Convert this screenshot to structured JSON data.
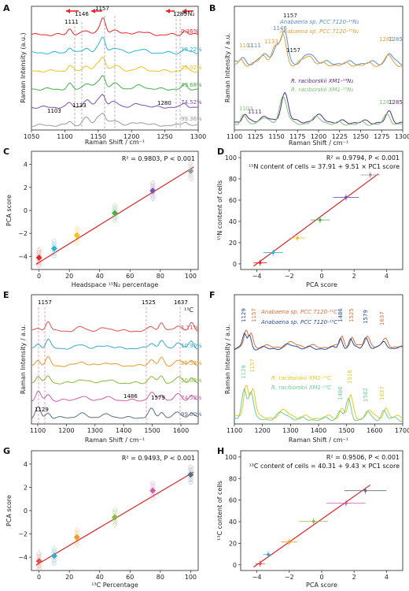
{
  "colors": {
    "red": "#e8262a",
    "cyan": "#2ab6d8",
    "yellow": "#f2c21b",
    "green": "#47b049",
    "purple": "#7a52b3",
    "gray": "#9a9a9a",
    "ana_blue": "#5b8ec9",
    "ana_orange": "#e0a33a",
    "rr_purple": "#5a2a82",
    "rr_green": "#7cc576",
    "fit": "#d8262a",
    "c_red": "#e0524f",
    "c_cyan": "#3aa9c7",
    "c_orange": "#ee9a25",
    "c_green": "#86bb3b",
    "c_pink": "#cf5bab",
    "c_slate": "#5b6f84",
    "c_ana_orange": "#e0703a",
    "c_ana_blue": "#2a4f9a",
    "c_rr_yellow": "#e8c81e",
    "c_rr_green": "#6fcf9a"
  },
  "panels": {
    "A": {
      "label": "A",
      "title": "¹⁵N₂",
      "xlabel": "Raman Shift / cm⁻¹",
      "ylabel": "Raman Intensity (a.u.)",
      "xlim": [
        1050,
        1300
      ],
      "xticks": [
        "1050",
        "1100",
        "1150",
        "1200",
        "1250",
        "1300"
      ],
      "peaks": [
        "1111",
        "1146",
        "1157",
        "1285",
        "1103",
        "1133",
        "1280"
      ],
      "series": [
        "0.36%",
        "10.22%",
        "25.02%",
        "49.68%",
        "74.52%",
        "99.36%"
      ]
    },
    "B": {
      "label": "B",
      "xlabel": "Raman Shift / cm⁻¹",
      "ylabel": "Raman Intensity / a.u.",
      "xlim": [
        1100,
        1300
      ],
      "xticks": [
        "1100",
        "1125",
        "1150",
        "1175",
        "1200",
        "1225",
        "1250",
        "1275",
        "1300"
      ],
      "legend_top": [
        "Anabaena sp. PCC 7120-¹⁴N₂",
        "Anabaena sp. PCC 7120-¹⁵N₂"
      ],
      "legend_bottom": [
        "R. raciborskii XM1-¹⁴N₂",
        "R. raciborskii XM1-¹⁵N₂"
      ],
      "peaks_top": [
        "1103",
        "1111",
        "1133",
        "1146",
        "1157",
        "1280",
        "1285"
      ],
      "peaks_bottom": [
        "1103",
        "1111",
        "1157",
        "1280",
        "1285"
      ]
    },
    "C": {
      "label": "C",
      "xlabel": "Headspace ¹⁵N₂ percentage",
      "ylabel": "PCA score",
      "stat": "R² = 0.9803, P < 0.001",
      "xticks": [
        "0",
        "20",
        "40",
        "60",
        "80",
        "100"
      ],
      "yticks": [
        "−4",
        "−2",
        "0",
        "2",
        "4"
      ]
    },
    "D": {
      "label": "D",
      "xlabel": "PCA score",
      "ylabel": "¹⁵N content of cells",
      "stat": "R² = 0.9794, P < 0.001",
      "equation": "¹⁵N content of cells = 37.91 + 9.51 × PC1 score",
      "xticks": [
        "−4",
        "−2",
        "0",
        "2",
        "4"
      ],
      "yticks": [
        "0",
        "20",
        "40",
        "60",
        "80",
        "100"
      ]
    },
    "E": {
      "label": "E",
      "title": "¹³C",
      "xlabel": "Raman Shift / cm⁻¹",
      "ylabel": "Raman Intensity / a.u.",
      "xticks": [
        "1100",
        "1200",
        "1300",
        "1400",
        "1500",
        "1600"
      ],
      "peaks": [
        "1157",
        "1525",
        "1637",
        "1129",
        "1486",
        "1579"
      ],
      "series": [
        "1.11%",
        "10.90%",
        "25.58%",
        "50.06%",
        "74.53%",
        "99.00%"
      ]
    },
    "F": {
      "label": "F",
      "xlabel": "Raman Shift / cm⁻¹",
      "ylabel": "Raman Intensity / a.u.",
      "xticks": [
        "1100",
        "1200",
        "1300",
        "1400",
        "1500",
        "1600",
        "1700"
      ],
      "legend_top": [
        "Anabaena sp. PCC 7120-¹²C",
        "Anabaena sp. PCC 7120-¹³C"
      ],
      "legend_bottom": [
        "R. raciborskii XM1-¹²C",
        "R. raciborskii XM1-¹³C"
      ],
      "peaks_top": [
        "1129",
        "1157",
        "1486",
        "1525",
        "1579",
        "1637"
      ],
      "peaks_bottom": [
        "1129",
        "1157",
        "1486",
        "1516",
        "1582",
        "1637"
      ]
    },
    "G": {
      "label": "G",
      "xlabel": "¹³C Percentage",
      "ylabel": "PCA score",
      "stat": "R² = 0.9493, P < 0.001",
      "xticks": [
        "0",
        "20",
        "40",
        "60",
        "80",
        "100"
      ],
      "yticks": [
        "−4",
        "−2",
        "0",
        "2",
        "4"
      ]
    },
    "H": {
      "label": "H",
      "xlabel": "PCA score",
      "ylabel": "¹³C content of cells",
      "stat": "R² = 0.9506, P < 0.001",
      "equation": "¹³C content of cells = 40.31 + 9.43 × PC1 score",
      "xticks": [
        "−4",
        "−2",
        "0",
        "2",
        "4"
      ],
      "yticks": [
        "0",
        "20",
        "40",
        "60",
        "80",
        "100"
      ]
    }
  },
  "chart_data": [
    {
      "panel": "A",
      "type": "line",
      "xlim": [
        1050,
        1300
      ],
      "x": [
        1050,
        1075,
        1100,
        1103,
        1111,
        1133,
        1146,
        1157,
        1175,
        1200,
        1225,
        1250,
        1280,
        1285,
        1300
      ],
      "series": [
        {
          "name": "0.36%",
          "values": [
            0.2,
            0.35,
            0.55,
            0.8,
            1.2,
            0.7,
            0.9,
            1.6,
            0.9,
            0.55,
            0.4,
            0.45,
            0.7,
            1.0,
            0.5
          ]
        },
        {
          "name": "10.22%",
          "values": [
            0.2,
            0.35,
            0.55,
            0.9,
            1.1,
            0.8,
            1.0,
            1.5,
            0.9,
            0.5,
            0.4,
            0.45,
            0.8,
            0.9,
            0.5
          ]
        },
        {
          "name": "25.02%",
          "values": [
            0.2,
            0.35,
            0.55,
            1.0,
            1.0,
            0.9,
            1.1,
            1.4,
            0.9,
            0.5,
            0.4,
            0.45,
            0.9,
            0.8,
            0.5
          ]
        },
        {
          "name": "49.68%",
          "values": [
            0.2,
            0.35,
            0.55,
            1.1,
            0.9,
            1.0,
            1.2,
            1.3,
            0.9,
            0.5,
            0.4,
            0.45,
            1.0,
            0.7,
            0.5
          ]
        },
        {
          "name": "74.52%",
          "values": [
            0.2,
            0.35,
            0.55,
            1.2,
            0.8,
            1.1,
            1.3,
            1.2,
            0.9,
            0.5,
            0.4,
            0.45,
            1.1,
            0.6,
            0.5
          ]
        },
        {
          "name": "99.36%",
          "values": [
            0.2,
            0.35,
            0.55,
            1.3,
            0.7,
            1.2,
            1.4,
            1.1,
            0.9,
            0.5,
            0.4,
            0.45,
            1.2,
            0.5,
            0.5
          ]
        }
      ]
    },
    {
      "panel": "C",
      "type": "scatter",
      "x": [
        0,
        10,
        25,
        50,
        75,
        100
      ],
      "y": [
        -3.6,
        -2.9,
        -1.9,
        -0.2,
        1.5,
        3.0
      ],
      "xlim": [
        -5,
        105
      ],
      "ylim": [
        -4.5,
        4.5
      ]
    },
    {
      "panel": "D",
      "type": "scatter",
      "x": [
        -3.8,
        -3.0,
        -1.5,
        -0.1,
        1.5,
        3.0
      ],
      "y": [
        1,
        10,
        23,
        39,
        59,
        79
      ],
      "xerr": [
        0.4,
        0.6,
        0.5,
        0.6,
        0.8,
        0.6
      ],
      "xlim": [
        -5,
        5
      ],
      "ylim": [
        -5,
        100
      ]
    },
    {
      "panel": "G",
      "type": "scatter",
      "x": [
        0,
        10,
        25,
        50,
        75,
        100
      ],
      "y": [
        -3.8,
        -3.4,
        -2.0,
        -0.5,
        1.5,
        2.7
      ],
      "xlim": [
        -5,
        105
      ],
      "ylim": [
        -4.5,
        4.5
      ]
    },
    {
      "panel": "H",
      "type": "scatter",
      "x": [
        -3.8,
        -3.3,
        -2.0,
        -0.5,
        1.5,
        2.7
      ],
      "y": [
        1,
        9,
        20,
        38,
        54,
        65
      ],
      "xerr": [
        0.3,
        0.3,
        0.5,
        0.9,
        1.2,
        1.3
      ],
      "xlim": [
        -5,
        5
      ],
      "ylim": [
        -5,
        100
      ]
    }
  ]
}
